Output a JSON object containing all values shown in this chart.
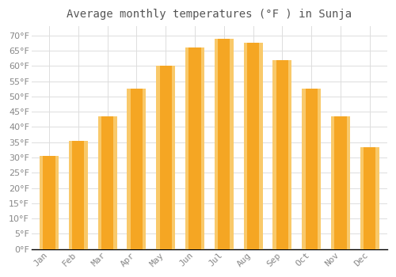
{
  "title": "Average monthly temperatures (°F ) in Sunja",
  "months": [
    "Jan",
    "Feb",
    "Mar",
    "Apr",
    "May",
    "Jun",
    "Jul",
    "Aug",
    "Sep",
    "Oct",
    "Nov",
    "Dec"
  ],
  "values": [
    30.5,
    35.5,
    43.5,
    52.5,
    60.0,
    66.0,
    69.0,
    67.5,
    62.0,
    52.5,
    43.5,
    33.5
  ],
  "bar_color_center": "#F5A623",
  "bar_color_edge": "#F9C96A",
  "background_color": "#FFFFFF",
  "plot_bg_color": "#FFFFFF",
  "grid_color": "#DDDDDD",
  "text_color": "#888888",
  "title_color": "#555555",
  "axis_color": "#000000",
  "ylim": [
    0,
    73
  ],
  "yticks": [
    0,
    5,
    10,
    15,
    20,
    25,
    30,
    35,
    40,
    45,
    50,
    55,
    60,
    65,
    70
  ],
  "title_fontsize": 10,
  "tick_fontsize": 8,
  "font_family": "monospace",
  "bar_width": 0.65
}
